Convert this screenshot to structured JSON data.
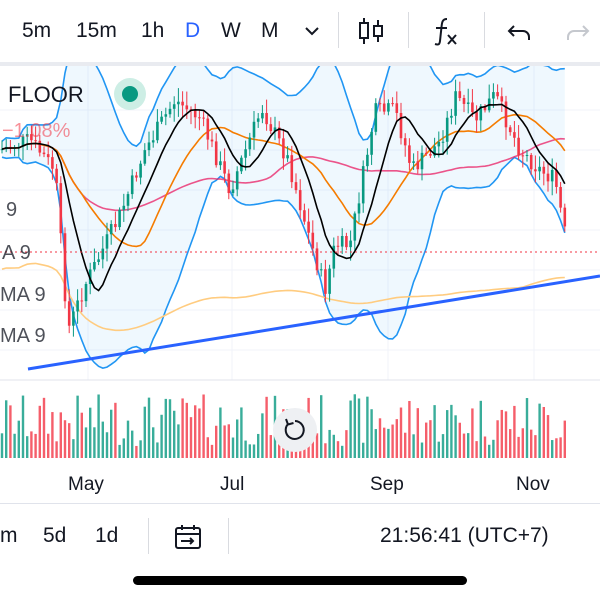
{
  "toolbar": {
    "timeframes": [
      {
        "label": "5m",
        "active": false
      },
      {
        "label": "15m",
        "active": false
      },
      {
        "label": "1h",
        "active": false
      },
      {
        "label": "D",
        "active": true
      },
      {
        "label": "W",
        "active": false
      },
      {
        "label": "M",
        "active": false
      }
    ],
    "icons": [
      "chevron-down-icon",
      "candlestick-icon",
      "indicators-icon",
      "undo-icon",
      "redo-icon"
    ]
  },
  "legend": {
    "symbol": "FLOOR",
    "change": "−1.08%",
    "ma_labels": [
      "9",
      "A 9",
      "MA 9",
      "MA 9"
    ]
  },
  "x_axis": {
    "labels": [
      "May",
      "Jul",
      "Sep",
      "Nov"
    ]
  },
  "footer": {
    "ranges": [
      "m",
      "5d",
      "1d"
    ],
    "clock": "21:56:41 (UTC+7)"
  },
  "colors": {
    "accent": "#2962ff",
    "up": "#089981",
    "down": "#f23645",
    "bollinger": "#2196f3",
    "sma_fast": "#000000",
    "sma_mid": "#f57c00",
    "sma_slow": "#e91e63",
    "sma_long": "#ffcc80",
    "trendline": "#2962ff"
  },
  "chart_data": {
    "type": "candlestick",
    "x": [
      "May",
      "Jul",
      "Sep",
      "Nov"
    ],
    "series": [
      {
        "name": "FLOOR"
      }
    ],
    "indicators": [
      "Bollinger Bands",
      "MA 9",
      "MA 9",
      "MA 9",
      "MA 9"
    ],
    "volume": true
  }
}
